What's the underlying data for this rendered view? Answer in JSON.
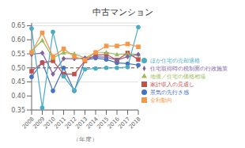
{
  "chart_data": {
    "type": "line",
    "title": "中古マンション",
    "xlabel": "（年度）",
    "categories": [
      "2008",
      "2009",
      "2010",
      "2011",
      "2012",
      "2013",
      "2014",
      "2015",
      "2016",
      "2017",
      "2018"
    ],
    "ylim": [
      0.35,
      0.66
    ],
    "yticks": [
      0.35,
      {
        "value": 0.4,
        "label": "0.40"
      },
      0.45,
      {
        "value": 0.5,
        "label": "0.50"
      },
      0.55,
      {
        "value": 0.6,
        "label": "0.60"
      },
      0.65
    ],
    "hline": 0.5,
    "grid": true,
    "legend": "right",
    "series": [
      {
        "name": "景気の先行き感",
        "color": "#4472C4",
        "marker": "circle",
        "values": [
          0.468,
          0.52,
          0.418,
          0.5,
          0.418,
          0.528,
          0.535,
          0.53,
          0.518,
          0.515,
          0.51
        ]
      },
      {
        "name": "家計収入の見通し",
        "color": "#C0504D",
        "marker": "square",
        "values": [
          0.488,
          0.518,
          0.525,
          0.478,
          0.478,
          0.525,
          0.545,
          0.548,
          0.528,
          0.553,
          0.53
        ]
      },
      {
        "name": "地価／住宅の価格相場",
        "color": "#9BBB59",
        "marker": "triangle",
        "values": [
          0.56,
          0.598,
          0.535,
          0.555,
          0.55,
          0.535,
          0.555,
          0.555,
          0.548,
          0.55,
          0.548
        ]
      },
      {
        "name": "住宅取得時の税制面の行政施策",
        "color": "#8064A2",
        "marker": "diamond",
        "values": [
          0.548,
          0.553,
          0.478,
          0.533,
          0.533,
          0.535,
          0.54,
          0.538,
          0.528,
          0.54,
          0.548
        ]
      },
      {
        "name": "ほか住宅の売却適格",
        "color": "#4BACC6",
        "marker": "circle",
        "values": [
          0.64,
          0.358,
          0.628,
          0.47,
          0.42,
          0.495,
          0.498,
          0.5,
          0.5,
          0.503,
          0.645
        ]
      },
      {
        "name": "金利動向",
        "color": "#F79646",
        "marker": "square",
        "values": [
          0.555,
          0.625,
          0.54,
          0.568,
          0.54,
          0.528,
          0.555,
          0.578,
          0.578,
          0.585,
          0.575
        ]
      }
    ]
  }
}
